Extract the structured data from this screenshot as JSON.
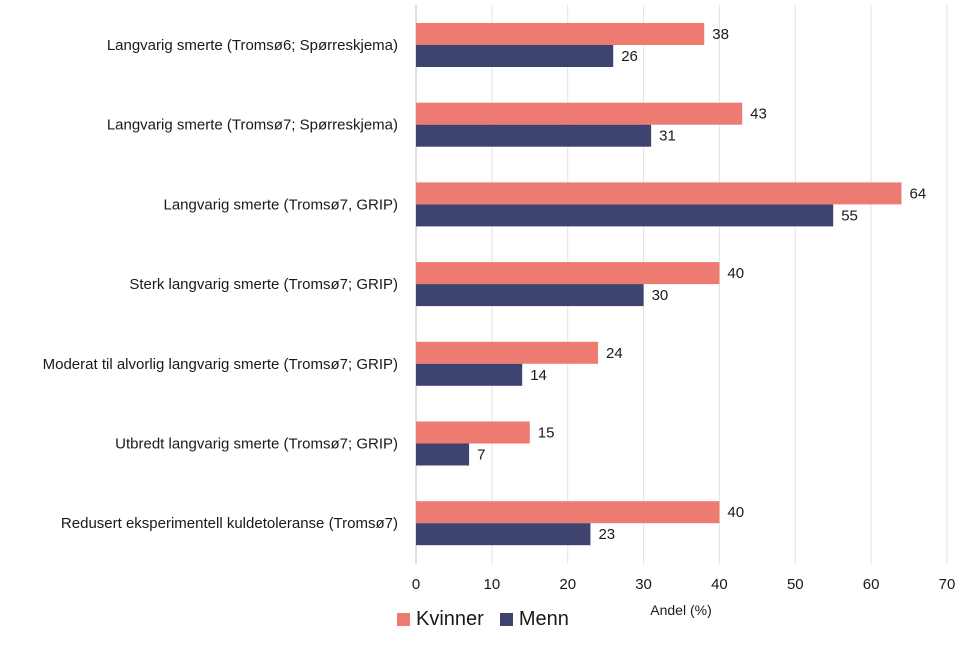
{
  "chart_data": {
    "type": "bar",
    "orientation": "horizontal",
    "categories": [
      "Langvarig smerte (Tromsø6; Spørreskjema)",
      "Langvarig smerte (Tromsø7; Spørreskjema)",
      "Langvarig smerte (Tromsø7, GRIP)",
      "Sterk langvarig smerte (Tromsø7; GRIP)",
      "Moderat til alvorlig langvarig smerte (Tromsø7; GRIP)",
      "Utbredt langvarig smerte (Tromsø7; GRIP)",
      "Redusert eksperimentell kuldetoleranse (Tromsø7)"
    ],
    "series": [
      {
        "name": "Kvinner",
        "color": "#ed7b72",
        "values": [
          38,
          43,
          64,
          40,
          24,
          15,
          40
        ]
      },
      {
        "name": "Menn",
        "color": "#3f4370",
        "values": [
          26,
          31,
          55,
          30,
          14,
          7,
          23
        ]
      }
    ],
    "xlabel": "Andel (%)",
    "xlim": [
      0,
      70
    ],
    "xticks": [
      0,
      10,
      20,
      30,
      40,
      50,
      60,
      70
    ],
    "grid": "vertical",
    "legend": "bottom-left"
  }
}
